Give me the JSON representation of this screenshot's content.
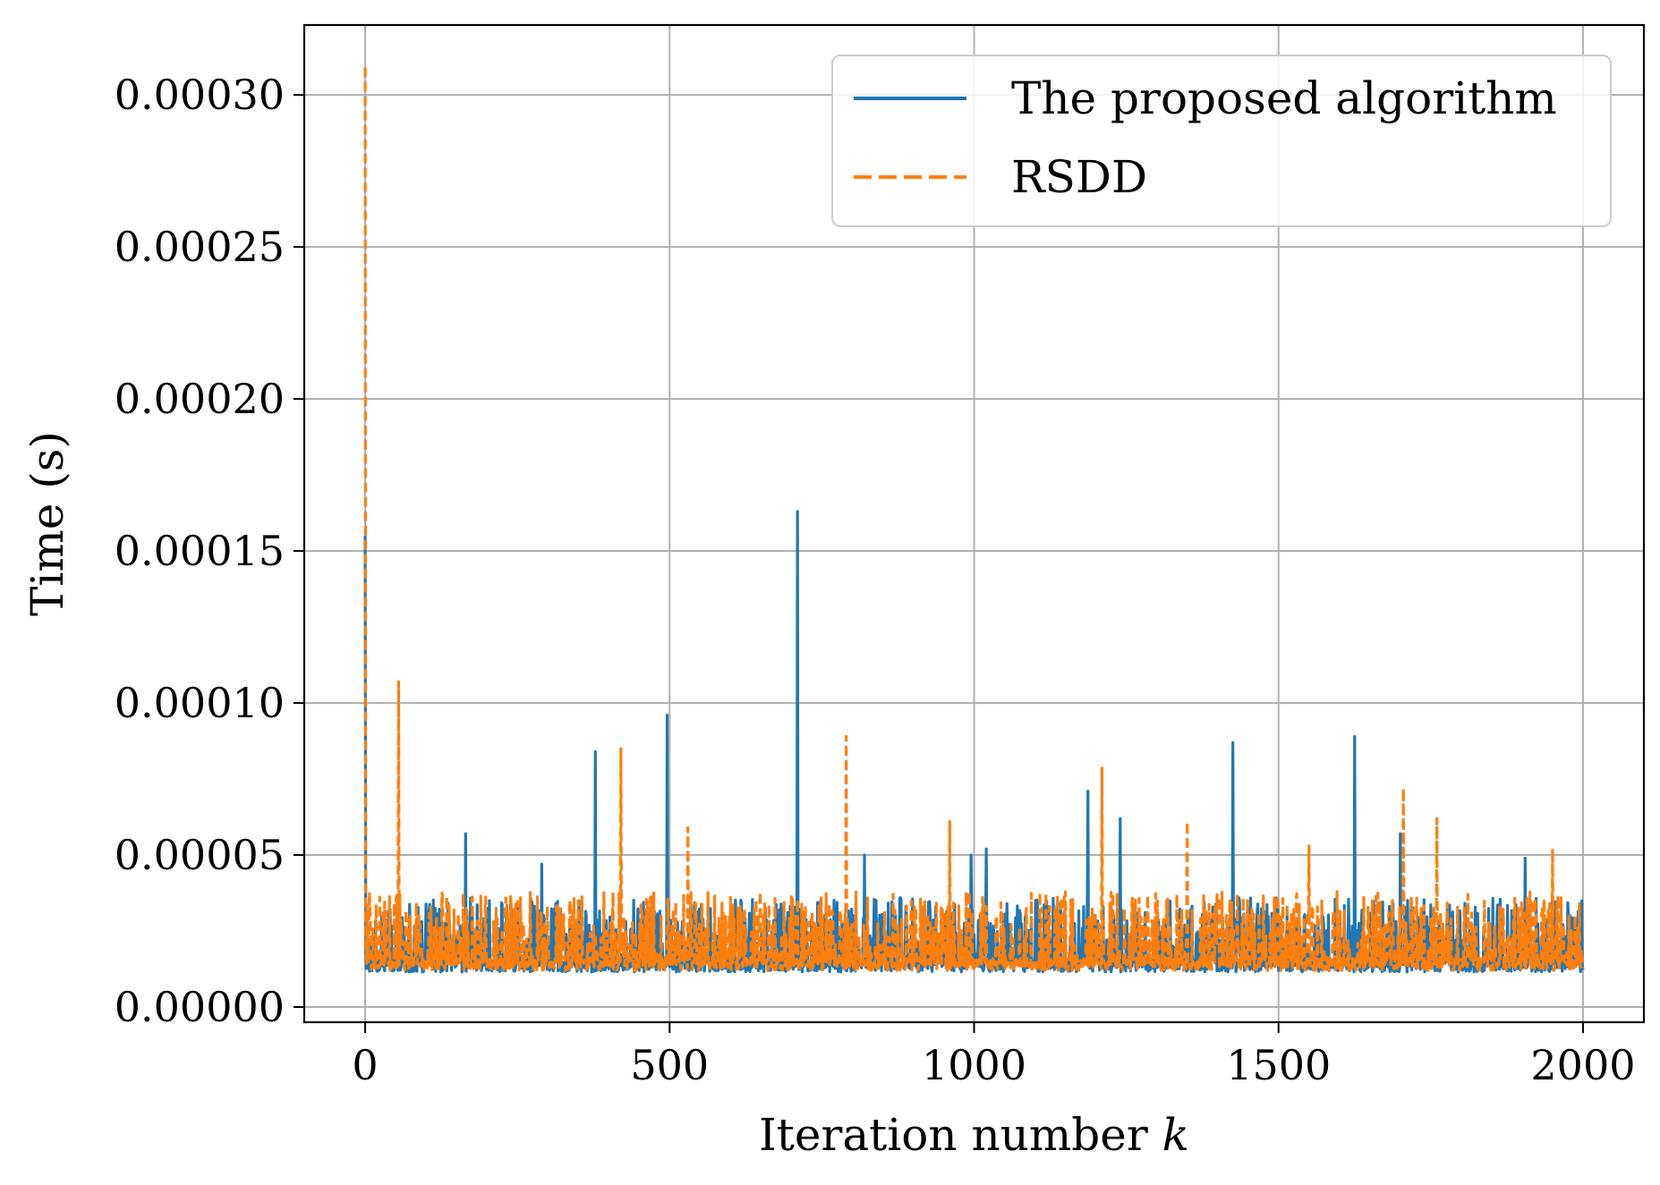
{
  "chart_data": {
    "type": "line",
    "title": "",
    "xlabel": "Iteration number ",
    "xlabel_var": "k",
    "ylabel": "Time (s)",
    "xlim": [
      -100,
      2100
    ],
    "ylim": [
      -5e-06,
      0.000323
    ],
    "xticks": [
      0,
      500,
      1000,
      1500,
      2000
    ],
    "xtick_labels": [
      "0",
      "500",
      "1000",
      "1500",
      "2000"
    ],
    "yticks": [
      0,
      5e-05,
      0.0001,
      0.00015,
      0.0002,
      0.00025,
      0.0003
    ],
    "ytick_labels": [
      "0.00000",
      "0.00005",
      "0.00010",
      "0.00015",
      "0.00020",
      "0.00025",
      "0.00030"
    ],
    "grid": true,
    "legend_position": "top-right",
    "series": [
      {
        "name": "The proposed algorithm",
        "color": "#1f77b4",
        "style": "solid",
        "iterations": 2000,
        "baseline": 1.15e-05,
        "noise_max": 3.6e-05,
        "start_value": 0.000155,
        "spikes": [
          [
            165,
            5.7e-05
          ],
          [
            290,
            4.7e-05
          ],
          [
            378,
            8.4e-05
          ],
          [
            496,
            9.6e-05
          ],
          [
            710,
            0.000163
          ],
          [
            820,
            5e-05
          ],
          [
            995,
            5e-05
          ],
          [
            1020,
            5.2e-05
          ],
          [
            1187,
            7.1e-05
          ],
          [
            1240,
            6.2e-05
          ],
          [
            1425,
            8.7e-05
          ],
          [
            1625,
            8.9e-05
          ],
          [
            1700,
            5.7e-05
          ],
          [
            1905,
            4.9e-05
          ]
        ]
      },
      {
        "name": "RSDD",
        "color": "#ff7f0e",
        "style": "dashed",
        "iterations": 2000,
        "baseline": 1.2e-05,
        "noise_max": 3.8e-05,
        "start_value": 0.000309,
        "spikes": [
          [
            55,
            0.000107
          ],
          [
            420,
            8.5e-05
          ],
          [
            530,
            5.9e-05
          ],
          [
            790,
            8.9e-05
          ],
          [
            960,
            6.1e-05
          ],
          [
            1210,
            7.9e-05
          ],
          [
            1350,
            6.1e-05
          ],
          [
            1550,
            5.3e-05
          ],
          [
            1705,
            7.2e-05
          ],
          [
            1760,
            6.2e-05
          ],
          [
            1950,
            5.2e-05
          ]
        ]
      }
    ]
  }
}
